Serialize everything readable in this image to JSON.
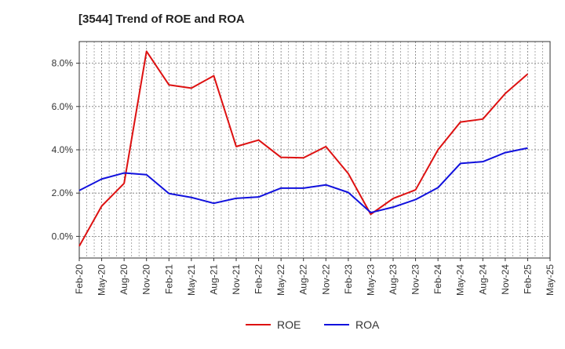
{
  "chart_data": {
    "type": "line",
    "title": "[3544]  Trend of ROE and ROA",
    "xlabel": "",
    "ylabel": "",
    "x": [
      "Feb-20",
      "May-20",
      "Aug-20",
      "Nov-20",
      "Feb-21",
      "May-21",
      "Aug-21",
      "Nov-21",
      "Feb-22",
      "May-22",
      "Aug-22",
      "Nov-22",
      "Feb-23",
      "May-23",
      "Aug-23",
      "Nov-23",
      "Feb-24",
      "May-24",
      "Aug-24",
      "Nov-24",
      "Feb-25"
    ],
    "x_tick_labels": [
      "Feb-20",
      "May-20",
      "Aug-20",
      "Nov-20",
      "Feb-21",
      "May-21",
      "Aug-21",
      "Nov-21",
      "Feb-22",
      "May-22",
      "Aug-22",
      "Nov-22",
      "Feb-23",
      "May-23",
      "Aug-23",
      "Nov-23",
      "Feb-24",
      "May-24",
      "Aug-24",
      "Nov-24",
      "Feb-25",
      "May-25"
    ],
    "y_ticks": [
      0,
      2,
      4,
      6,
      8
    ],
    "y_tick_labels": [
      "0.0%",
      "2.0%",
      "4.0%",
      "6.0%",
      "8.0%"
    ],
    "ylim": [
      -1.0,
      9.0
    ],
    "grid": true,
    "legend": "bottom-center",
    "series": [
      {
        "name": "ROE",
        "color": "#dd1111",
        "values": [
          -0.45,
          1.4,
          2.45,
          8.55,
          7.0,
          6.85,
          7.42,
          4.15,
          4.45,
          3.65,
          3.63,
          4.15,
          2.9,
          1.02,
          1.75,
          2.15,
          4.0,
          5.28,
          5.42,
          6.6,
          7.5
        ]
      },
      {
        "name": "ROA",
        "color": "#1111dd",
        "values": [
          2.12,
          2.65,
          2.93,
          2.85,
          1.98,
          1.8,
          1.53,
          1.76,
          1.82,
          2.23,
          2.23,
          2.38,
          2.03,
          1.1,
          1.35,
          1.7,
          2.25,
          3.37,
          3.45,
          3.87,
          4.08
        ]
      }
    ]
  }
}
